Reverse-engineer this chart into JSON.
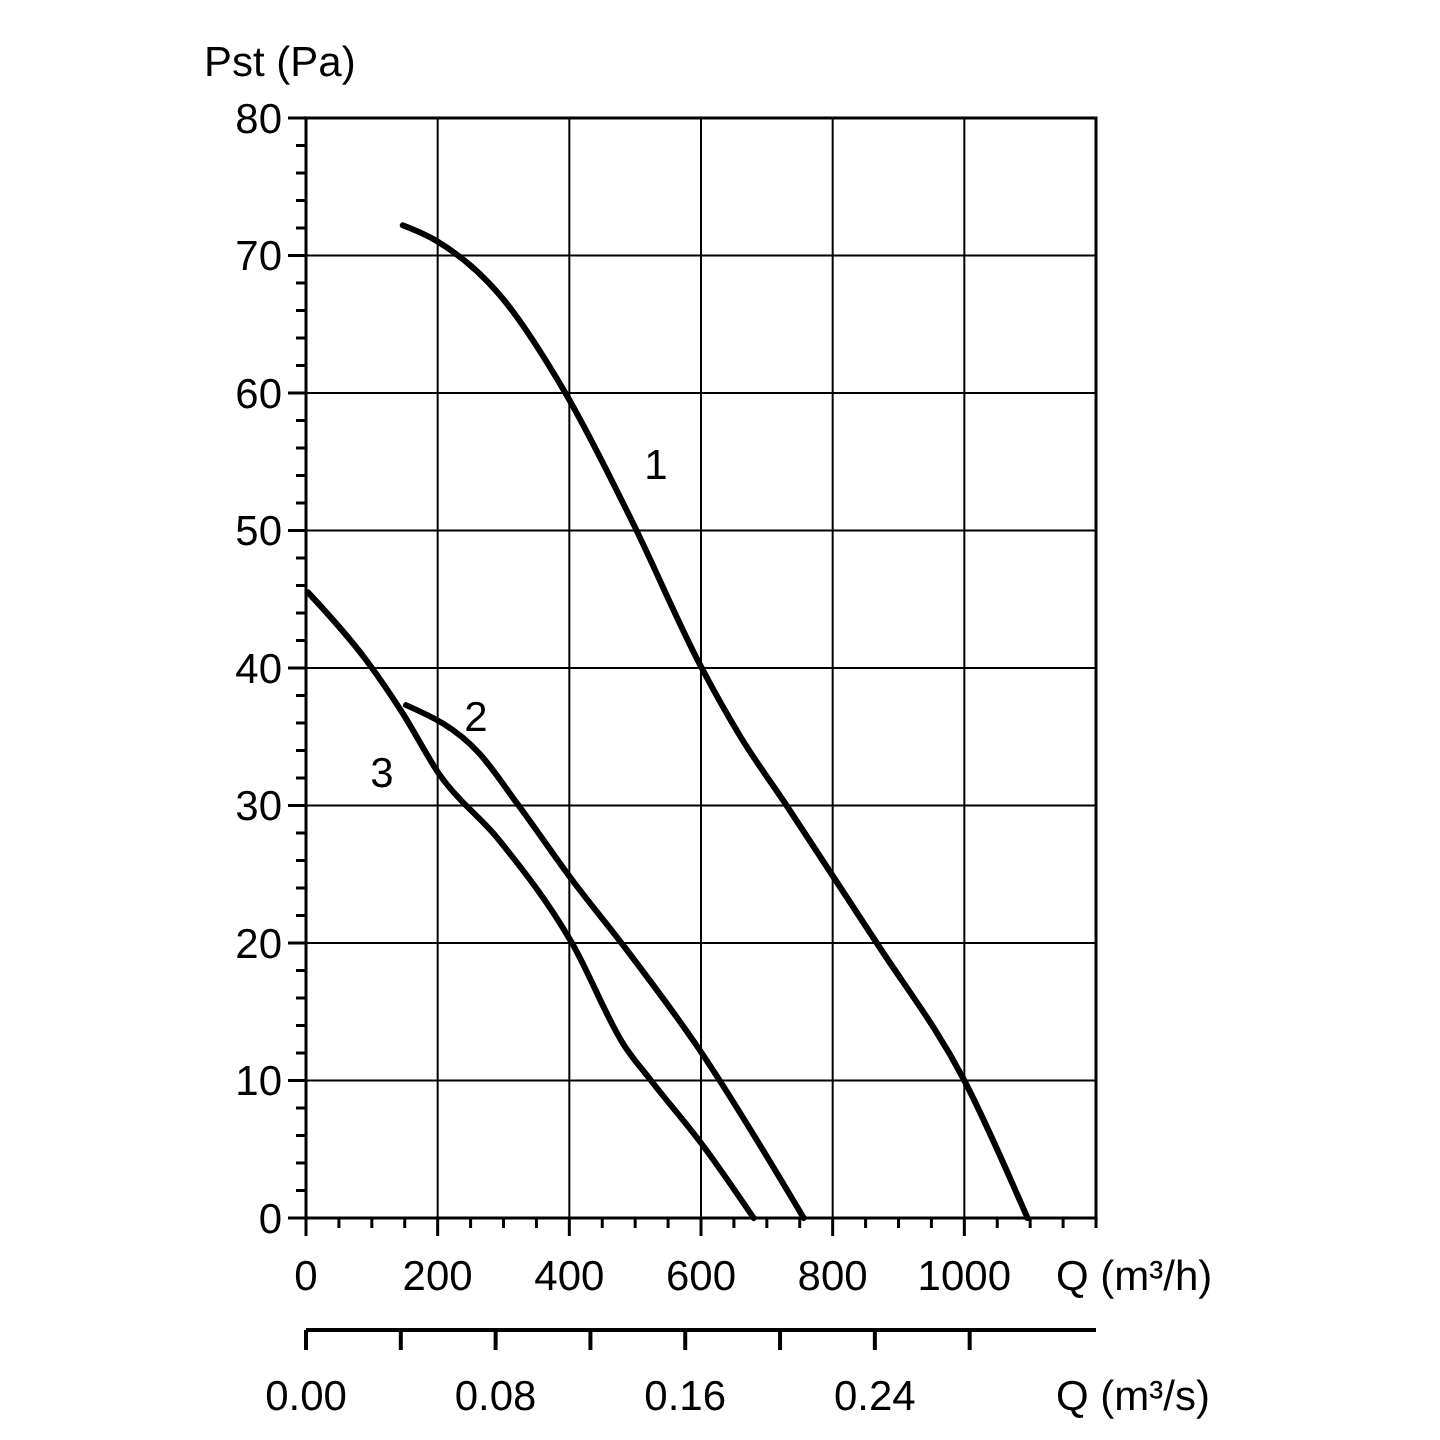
{
  "chart_data": {
    "type": "line",
    "ylabel": "Pst (Pa)",
    "xlabel": "Q (m³/h)",
    "x2label": "Q (m³/s)",
    "xlim": [
      0,
      1200
    ],
    "xticks": [
      0,
      {
        "value": 50,
        "label": null
      },
      {
        "value": 100,
        "label": null
      },
      {
        "value": 150,
        "label": null
      },
      200,
      {
        "value": 250,
        "label": null
      },
      {
        "value": 300,
        "label": null
      },
      {
        "value": 350,
        "label": null
      },
      400,
      {
        "value": 450,
        "label": null
      },
      {
        "value": 500,
        "label": null
      },
      {
        "value": 550,
        "label": null
      },
      600,
      {
        "value": 650,
        "label": null
      },
      {
        "value": 700,
        "label": null
      },
      {
        "value": 750,
        "label": null
      },
      800,
      {
        "value": 850,
        "label": null
      },
      {
        "value": 900,
        "label": null
      },
      {
        "value": 950,
        "label": null
      },
      1000,
      {
        "value": 1050,
        "label": null
      },
      {
        "value": 1100,
        "label": null
      },
      {
        "value": 1150,
        "label": null
      },
      {
        "value": 1200,
        "label": null
      }
    ],
    "x2lim": [
      0,
      0.3333
    ],
    "x2ticks": [
      {
        "value": 0,
        "label": "0.00"
      },
      {
        "value": 0.08,
        "label": "0.08"
      },
      {
        "value": 0.16,
        "label": "0.16"
      },
      {
        "value": 0.24,
        "label": "0.24"
      }
    ],
    "ylim": [
      0,
      80
    ],
    "yticks": [
      0,
      {
        "value": 2,
        "label": null
      },
      {
        "value": 4,
        "label": null
      },
      {
        "value": 6,
        "label": null
      },
      {
        "value": 8,
        "label": null
      },
      10,
      {
        "value": 12,
        "label": null
      },
      {
        "value": 14,
        "label": null
      },
      {
        "value": 16,
        "label": null
      },
      {
        "value": 18,
        "label": null
      },
      20,
      {
        "value": 22,
        "label": null
      },
      {
        "value": 24,
        "label": null
      },
      {
        "value": 26,
        "label": null
      },
      {
        "value": 28,
        "label": null
      },
      30,
      {
        "value": 32,
        "label": null
      },
      {
        "value": 34,
        "label": null
      },
      {
        "value": 36,
        "label": null
      },
      {
        "value": 38,
        "label": null
      },
      40,
      {
        "value": 42,
        "label": null
      },
      {
        "value": 44,
        "label": null
      },
      {
        "value": 46,
        "label": null
      },
      {
        "value": 48,
        "label": null
      },
      50,
      {
        "value": 52,
        "label": null
      },
      {
        "value": 54,
        "label": null
      },
      {
        "value": 56,
        "label": null
      },
      {
        "value": 58,
        "label": null
      },
      60,
      {
        "value": 62,
        "label": null
      },
      {
        "value": 64,
        "label": null
      },
      {
        "value": 66,
        "label": null
      },
      {
        "value": 68,
        "label": null
      },
      70,
      {
        "value": 72,
        "label": null
      },
      {
        "value": 74,
        "label": null
      },
      {
        "value": 76,
        "label": null
      },
      {
        "value": 78,
        "label": null
      },
      80
    ],
    "grid": true,
    "marker": "none",
    "line_style": "solid",
    "series": [
      {
        "color": "#000000",
        "x": [
          147,
          197,
          293,
          394,
          494,
          600,
          660,
          730,
          867,
          1000,
          1096
        ],
        "values": [
          72.2,
          71.1,
          67.2,
          60,
          50.8,
          40.1,
          35,
          30,
          20,
          10,
          0
        ]
      },
      {
        "color": "#000000",
        "x": [
          152,
          263,
          323,
          404,
          484,
          594,
          756
        ],
        "values": [
          37.3,
          33.8,
          30,
          24.6,
          19.7,
          12.5,
          0
        ]
      },
      {
        "color": "#000000",
        "x": [
          3,
          91,
          147,
          202,
          293,
          404,
          484,
          524,
          604,
          680
        ],
        "values": [
          45.5,
          40.6,
          36.7,
          32.3,
          27.5,
          20,
          12.5,
          10,
          5.2,
          0
        ]
      }
    ],
    "annotations": [
      "1",
      "2",
      "3"
    ]
  }
}
